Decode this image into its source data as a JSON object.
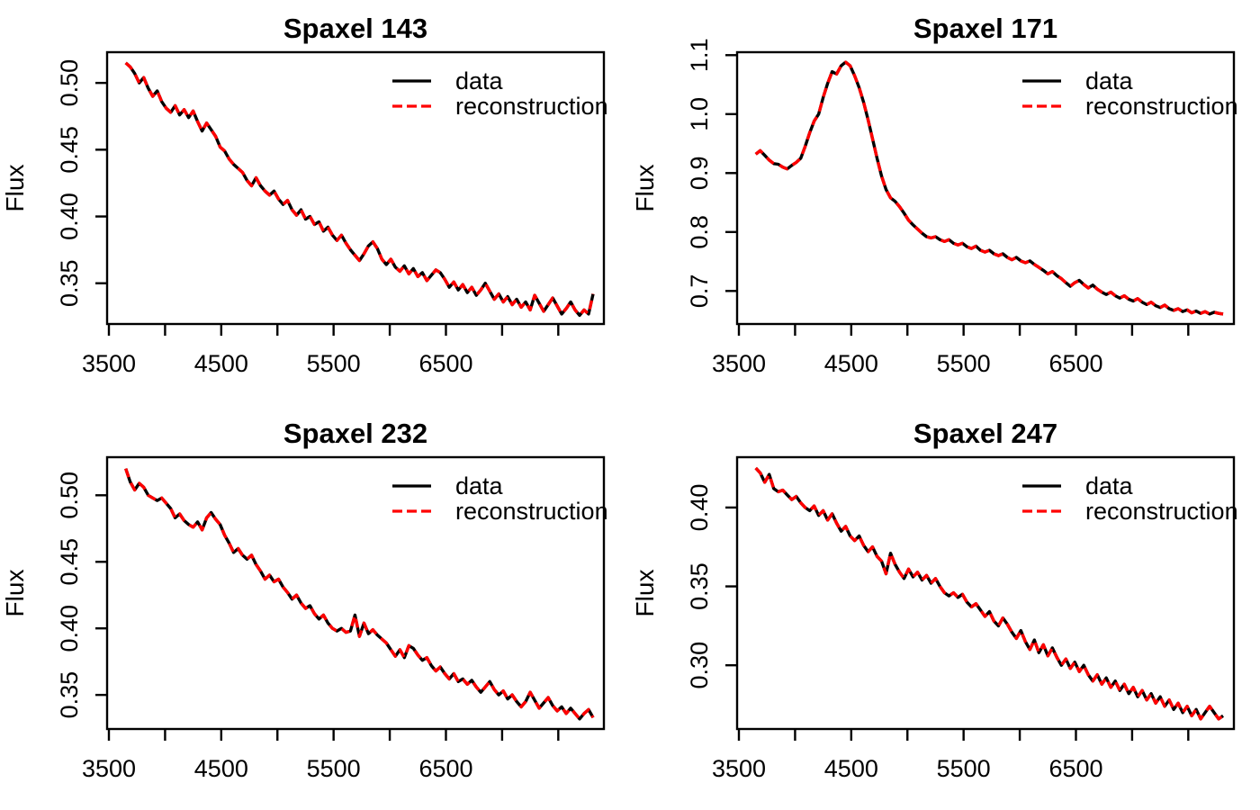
{
  "figure": {
    "background": "#ffffff",
    "layout": "2x2-grid",
    "ylabel": "Flux",
    "xlabel": "",
    "legend": {
      "position": "topright",
      "entries": [
        {
          "label": "data",
          "color": "#000000",
          "line_style": "solid"
        },
        {
          "label": "reconstruction",
          "color": "#ff0000",
          "line_style": "dashed"
        }
      ]
    }
  },
  "chart_data": [
    {
      "type": "line",
      "title": "Spaxel 143",
      "xlabel": "",
      "ylabel": "Flux",
      "xlim": [
        3484,
        7906
      ],
      "ylim": [
        0.3195,
        0.523
      ],
      "x_ticks": [
        3500,
        4000,
        4500,
        5000,
        5500,
        6000,
        6500,
        7000,
        7500
      ],
      "x_tick_labels": [
        "3500",
        "",
        "4500",
        "",
        "5500",
        "",
        "6500",
        "",
        ""
      ],
      "y_ticks": [
        0.35,
        0.4,
        0.45,
        0.5
      ],
      "y_tick_labels": [
        "0.35",
        "0.40",
        "0.45",
        "0.50"
      ],
      "grid": false,
      "x_start": 3650,
      "x_step": 40,
      "series": [
        {
          "name": "data",
          "color": "#000000",
          "style": "solid",
          "values": [
            0.515,
            0.512,
            0.507,
            0.5,
            0.504,
            0.496,
            0.49,
            0.494,
            0.486,
            0.481,
            0.478,
            0.483,
            0.476,
            0.48,
            0.474,
            0.479,
            0.471,
            0.464,
            0.47,
            0.465,
            0.46,
            0.452,
            0.449,
            0.443,
            0.439,
            0.436,
            0.433,
            0.427,
            0.423,
            0.429,
            0.423,
            0.419,
            0.416,
            0.419,
            0.413,
            0.409,
            0.412,
            0.405,
            0.401,
            0.405,
            0.398,
            0.4,
            0.394,
            0.396,
            0.389,
            0.392,
            0.386,
            0.382,
            0.386,
            0.38,
            0.375,
            0.371,
            0.367,
            0.372,
            0.378,
            0.381,
            0.376,
            0.368,
            0.364,
            0.368,
            0.362,
            0.359,
            0.363,
            0.357,
            0.361,
            0.355,
            0.358,
            0.352,
            0.356,
            0.36,
            0.358,
            0.353,
            0.347,
            0.351,
            0.345,
            0.349,
            0.343,
            0.347,
            0.341,
            0.345,
            0.35,
            0.344,
            0.338,
            0.342,
            0.336,
            0.34,
            0.334,
            0.338,
            0.332,
            0.336,
            0.33,
            0.341,
            0.335,
            0.329,
            0.334,
            0.339,
            0.333,
            0.327,
            0.331,
            0.336,
            0.33,
            0.326,
            0.33,
            0.327,
            0.342
          ]
        },
        {
          "name": "reconstruction",
          "color": "#ff0000",
          "style": "dashed",
          "values": "same-as-data"
        }
      ]
    },
    {
      "type": "line",
      "title": "Spaxel 171",
      "xlabel": "",
      "ylabel": "Flux",
      "xlim": [
        3484,
        7906
      ],
      "ylim": [
        0.644,
        1.105
      ],
      "x_ticks": [
        3500,
        4000,
        4500,
        5000,
        5500,
        6000,
        6500,
        7000,
        7500
      ],
      "x_tick_labels": [
        "3500",
        "",
        "4500",
        "",
        "5500",
        "",
        "6500",
        "",
        ""
      ],
      "y_ticks": [
        0.7,
        0.8,
        0.9,
        1.0,
        1.1
      ],
      "y_tick_labels": [
        "0.7",
        "0.8",
        "0.9",
        "1.0",
        "1.1"
      ],
      "grid": false,
      "x_start": 3650,
      "x_step": 40,
      "series": [
        {
          "name": "data",
          "color": "#000000",
          "style": "solid",
          "values": [
            0.932,
            0.938,
            0.93,
            0.922,
            0.916,
            0.915,
            0.91,
            0.907,
            0.913,
            0.918,
            0.925,
            0.945,
            0.968,
            0.988,
            1.0,
            1.028,
            1.052,
            1.072,
            1.068,
            1.082,
            1.088,
            1.082,
            1.065,
            1.045,
            1.02,
            0.99,
            0.958,
            0.925,
            0.895,
            0.872,
            0.858,
            0.852,
            0.843,
            0.832,
            0.82,
            0.812,
            0.805,
            0.798,
            0.792,
            0.79,
            0.792,
            0.787,
            0.784,
            0.787,
            0.781,
            0.778,
            0.781,
            0.775,
            0.772,
            0.776,
            0.769,
            0.766,
            0.769,
            0.763,
            0.76,
            0.763,
            0.757,
            0.753,
            0.757,
            0.751,
            0.748,
            0.751,
            0.745,
            0.74,
            0.735,
            0.729,
            0.733,
            0.726,
            0.721,
            0.714,
            0.708,
            0.714,
            0.718,
            0.711,
            0.705,
            0.71,
            0.703,
            0.698,
            0.694,
            0.698,
            0.692,
            0.688,
            0.692,
            0.686,
            0.683,
            0.687,
            0.681,
            0.677,
            0.681,
            0.675,
            0.672,
            0.676,
            0.67,
            0.667,
            0.67,
            0.665,
            0.668,
            0.663,
            0.666,
            0.662,
            0.665,
            0.661,
            0.664,
            0.662,
            0.661
          ]
        },
        {
          "name": "reconstruction",
          "color": "#ff0000",
          "style": "dashed",
          "values": "same-as-data"
        }
      ]
    },
    {
      "type": "line",
      "title": "Spaxel 232",
      "xlabel": "",
      "ylabel": "Flux",
      "xlim": [
        3484,
        7906
      ],
      "ylim": [
        0.3244,
        0.5286
      ],
      "x_ticks": [
        3500,
        4000,
        4500,
        5000,
        5500,
        6000,
        6500,
        7000,
        7500
      ],
      "x_tick_labels": [
        "3500",
        "",
        "4500",
        "",
        "5500",
        "",
        "6500",
        "",
        ""
      ],
      "y_ticks": [
        0.35,
        0.4,
        0.45,
        0.5
      ],
      "y_tick_labels": [
        "0.35",
        "0.40",
        "0.45",
        "0.50"
      ],
      "grid": false,
      "x_start": 3650,
      "x_step": 40,
      "series": [
        {
          "name": "data",
          "color": "#000000",
          "style": "solid",
          "values": [
            0.52,
            0.51,
            0.504,
            0.509,
            0.506,
            0.5,
            0.498,
            0.496,
            0.498,
            0.494,
            0.49,
            0.483,
            0.486,
            0.481,
            0.478,
            0.476,
            0.48,
            0.474,
            0.483,
            0.487,
            0.482,
            0.478,
            0.47,
            0.464,
            0.457,
            0.46,
            0.455,
            0.452,
            0.455,
            0.448,
            0.443,
            0.437,
            0.44,
            0.435,
            0.437,
            0.431,
            0.427,
            0.422,
            0.425,
            0.419,
            0.415,
            0.417,
            0.411,
            0.407,
            0.41,
            0.404,
            0.4,
            0.398,
            0.4,
            0.397,
            0.398,
            0.41,
            0.394,
            0.404,
            0.396,
            0.399,
            0.395,
            0.392,
            0.389,
            0.384,
            0.379,
            0.384,
            0.378,
            0.387,
            0.385,
            0.38,
            0.376,
            0.378,
            0.372,
            0.368,
            0.371,
            0.366,
            0.362,
            0.366,
            0.36,
            0.362,
            0.358,
            0.361,
            0.356,
            0.352,
            0.356,
            0.36,
            0.354,
            0.35,
            0.353,
            0.347,
            0.35,
            0.345,
            0.341,
            0.345,
            0.352,
            0.346,
            0.34,
            0.344,
            0.348,
            0.342,
            0.338,
            0.341,
            0.336,
            0.34,
            0.336,
            0.332,
            0.336,
            0.339,
            0.333
          ]
        },
        {
          "name": "reconstruction",
          "color": "#ff0000",
          "style": "dashed",
          "values": "same-as-data"
        }
      ]
    },
    {
      "type": "line",
      "title": "Spaxel 247",
      "xlabel": "",
      "ylabel": "Flux",
      "xlim": [
        3484,
        7906
      ],
      "ylim": [
        0.2596,
        0.4319
      ],
      "x_ticks": [
        3500,
        4000,
        4500,
        5000,
        5500,
        6000,
        6500,
        7000,
        7500
      ],
      "x_tick_labels": [
        "3500",
        "",
        "4500",
        "",
        "5500",
        "",
        "6500",
        "",
        ""
      ],
      "y_ticks": [
        0.3,
        0.35,
        0.4
      ],
      "y_tick_labels": [
        "0.30",
        "0.35",
        "0.40"
      ],
      "grid": false,
      "x_start": 3650,
      "x_step": 40,
      "series": [
        {
          "name": "data",
          "color": "#000000",
          "style": "solid",
          "values": [
            0.425,
            0.422,
            0.416,
            0.421,
            0.412,
            0.41,
            0.411,
            0.408,
            0.405,
            0.407,
            0.403,
            0.4,
            0.398,
            0.401,
            0.395,
            0.398,
            0.392,
            0.396,
            0.39,
            0.385,
            0.388,
            0.382,
            0.379,
            0.382,
            0.376,
            0.372,
            0.375,
            0.369,
            0.366,
            0.358,
            0.371,
            0.364,
            0.359,
            0.355,
            0.361,
            0.356,
            0.359,
            0.354,
            0.357,
            0.352,
            0.355,
            0.35,
            0.346,
            0.344,
            0.346,
            0.343,
            0.345,
            0.34,
            0.337,
            0.339,
            0.335,
            0.331,
            0.334,
            0.328,
            0.325,
            0.33,
            0.326,
            0.321,
            0.317,
            0.322,
            0.315,
            0.31,
            0.316,
            0.308,
            0.313,
            0.306,
            0.311,
            0.305,
            0.3,
            0.304,
            0.298,
            0.302,
            0.296,
            0.3,
            0.294,
            0.29,
            0.294,
            0.288,
            0.292,
            0.286,
            0.29,
            0.284,
            0.288,
            0.282,
            0.286,
            0.28,
            0.284,
            0.278,
            0.282,
            0.276,
            0.28,
            0.274,
            0.278,
            0.272,
            0.276,
            0.27,
            0.274,
            0.268,
            0.272,
            0.266,
            0.27,
            0.274,
            0.27,
            0.266,
            0.268
          ]
        },
        {
          "name": "reconstruction",
          "color": "#ff0000",
          "style": "dashed",
          "values": "same-as-data"
        }
      ]
    }
  ]
}
